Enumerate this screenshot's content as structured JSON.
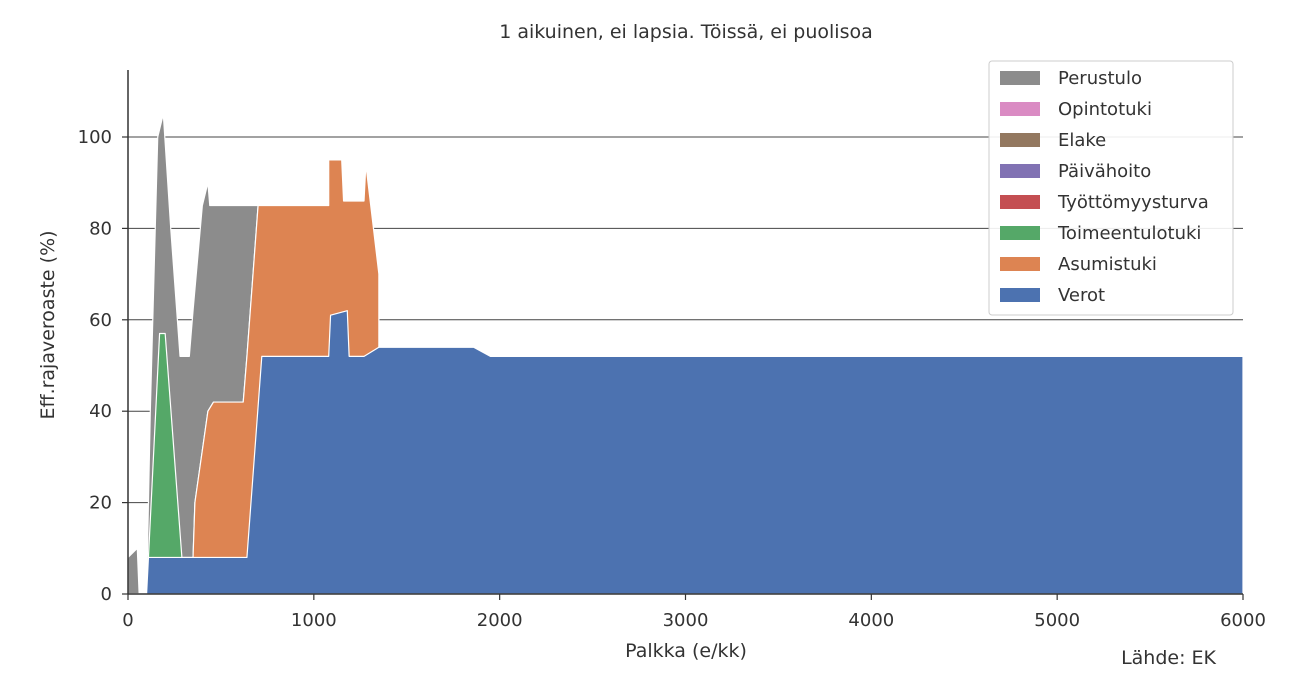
{
  "chart_data": {
    "type": "area",
    "title": "1 aikuinen, ei lapsia. Töissä, ei puolisoa",
    "xlabel": "Palkka (e/kk)",
    "ylabel": "Eff.rajaveroaste (%)",
    "source": "Lähde: EK",
    "xlim": [
      0,
      6000
    ],
    "ylim": [
      0,
      100
    ],
    "x_ticks": [
      0,
      1000,
      2000,
      3000,
      4000,
      5000,
      6000
    ],
    "y_ticks": [
      0,
      20,
      40,
      60,
      80,
      100
    ],
    "grid": "horizontal",
    "legend_position": "top-right",
    "series": [
      {
        "name": "Verot",
        "color": "#4c72b0",
        "points": [
          [
            0,
            0
          ],
          [
            100,
            0
          ],
          [
            110,
            8
          ],
          [
            640,
            8
          ],
          [
            720,
            52
          ],
          [
            1080,
            52
          ],
          [
            1090,
            61
          ],
          [
            1180,
            62
          ],
          [
            1190,
            52
          ],
          [
            1270,
            52
          ],
          [
            1350,
            54
          ],
          [
            1860,
            54
          ],
          [
            1950,
            52
          ],
          [
            6000,
            52
          ]
        ]
      },
      {
        "name": "Asumistuki",
        "color": "#dd8452",
        "points": [
          [
            0,
            0
          ],
          [
            330,
            0
          ],
          [
            340,
            0
          ],
          [
            350,
            8
          ],
          [
            360,
            20
          ],
          [
            430,
            40
          ],
          [
            460,
            42
          ],
          [
            620,
            42
          ],
          [
            640,
            52
          ],
          [
            700,
            85
          ],
          [
            1080,
            85
          ],
          [
            1080,
            95
          ],
          [
            1150,
            95
          ],
          [
            1160,
            86
          ],
          [
            1270,
            86
          ],
          [
            1280,
            94
          ],
          [
            1350,
            70
          ],
          [
            1350,
            54
          ],
          [
            1860,
            54
          ],
          [
            1950,
            52
          ],
          [
            6000,
            52
          ]
        ]
      },
      {
        "name": "Toimeentulotuki",
        "color": "#55a868",
        "points": [
          [
            0,
            0
          ],
          [
            100,
            0
          ],
          [
            110,
            8
          ],
          [
            170,
            57
          ],
          [
            200,
            57
          ],
          [
            290,
            8
          ],
          [
            330,
            8
          ],
          [
            340,
            8
          ],
          [
            350,
            8
          ],
          [
            360,
            20
          ],
          [
            430,
            40
          ],
          [
            460,
            42
          ],
          [
            620,
            42
          ],
          [
            640,
            52
          ],
          [
            700,
            85
          ],
          [
            1080,
            85
          ],
          [
            1080,
            95
          ],
          [
            1150,
            95
          ],
          [
            1160,
            86
          ],
          [
            1270,
            86
          ],
          [
            1280,
            94
          ],
          [
            1350,
            70
          ],
          [
            1350,
            54
          ],
          [
            1860,
            54
          ],
          [
            1950,
            52
          ],
          [
            6000,
            52
          ]
        ]
      },
      {
        "name": "Työttömyysturva",
        "color": "#c44e52",
        "points": []
      },
      {
        "name": "Päivähoito",
        "color": "#8172b3",
        "points": []
      },
      {
        "name": "Elake",
        "color": "#937860",
        "points": []
      },
      {
        "name": "Opintotuki",
        "color": "#da8bc3",
        "points": []
      },
      {
        "name": "Perustulo",
        "color": "#8c8c8c",
        "points": [
          [
            0,
            8
          ],
          [
            50,
            10
          ],
          [
            60,
            0
          ],
          [
            100,
            0
          ],
          [
            120,
            40
          ],
          [
            160,
            100
          ],
          [
            190,
            105
          ],
          [
            230,
            80
          ],
          [
            280,
            52
          ],
          [
            330,
            52
          ],
          [
            350,
            62
          ],
          [
            400,
            85
          ],
          [
            430,
            90
          ],
          [
            440,
            85
          ],
          [
            720,
            85
          ],
          [
            1080,
            85
          ],
          [
            1080,
            95
          ],
          [
            1150,
            95
          ],
          [
            1160,
            86
          ],
          [
            1270,
            86
          ],
          [
            1280,
            94
          ],
          [
            1350,
            70
          ],
          [
            1350,
            54
          ],
          [
            1860,
            54
          ],
          [
            1950,
            52
          ],
          [
            6000,
            52
          ]
        ]
      }
    ],
    "legend": [
      {
        "label": "Perustulo",
        "color": "#8c8c8c"
      },
      {
        "label": "Opintotuki",
        "color": "#da8bc3"
      },
      {
        "label": "Elake",
        "color": "#937860"
      },
      {
        "label": "Päivähoito",
        "color": "#8172b3"
      },
      {
        "label": "Työttömyysturva",
        "color": "#c44e52"
      },
      {
        "label": "Toimeentulotuki",
        "color": "#55a868"
      },
      {
        "label": "Asumistuki",
        "color": "#dd8452"
      },
      {
        "label": "Verot",
        "color": "#4c72b0"
      }
    ]
  }
}
